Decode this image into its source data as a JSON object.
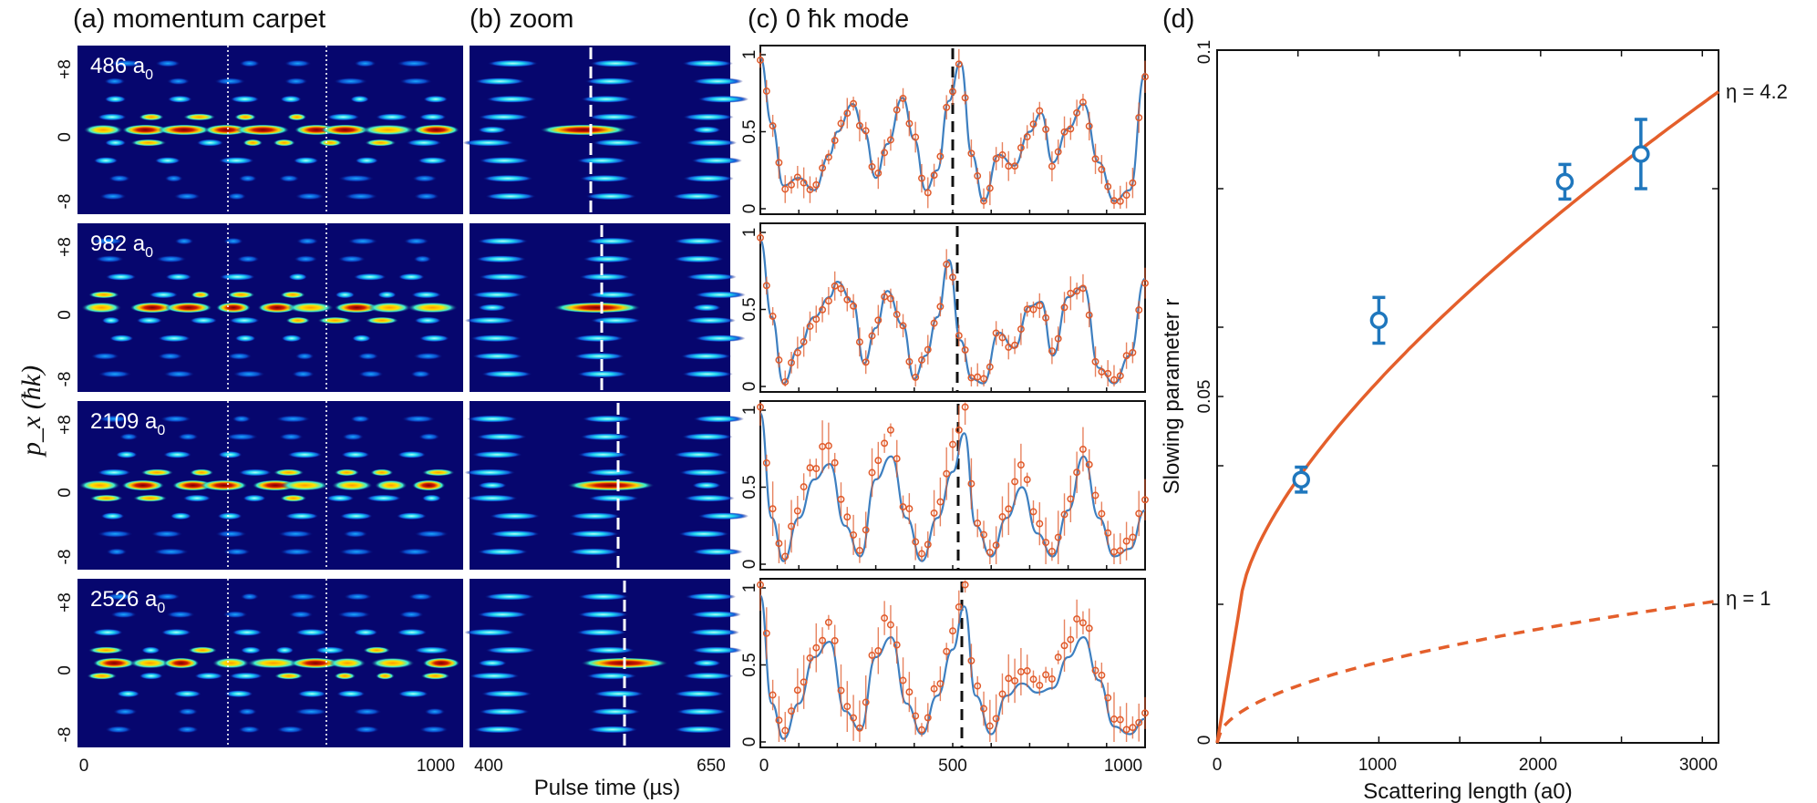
{
  "panels": {
    "a_title": "(a)  momentum carpet",
    "b_title": "(b)  zoom",
    "c_title": "(c)  0 ħk mode",
    "d_title": "(d)"
  },
  "y_axis_label": "p_x (ħk)",
  "carpet_y_ticks": [
    "+8",
    "0",
    "-8"
  ],
  "rows": [
    {
      "label": "486",
      "unit": "a",
      "sub": "0"
    },
    {
      "label": "982",
      "unit": "a",
      "sub": "0"
    },
    {
      "label": "2109",
      "unit": "a",
      "sub": "0"
    },
    {
      "label": "2526",
      "unit": "a",
      "sub": "0"
    }
  ],
  "carpet_x_ticks": [
    "0",
    "1000"
  ],
  "zoom_x_ticks": [
    "400",
    "650"
  ],
  "pulse_time_label": "Pulse time (µs)",
  "mode_y_ticks": [
    "1",
    "0.5",
    "0"
  ],
  "mode_x_ticks": [
    "0",
    "500",
    "1000"
  ],
  "colors": {
    "carpet_bg": "#06066e",
    "curve_blue": "#3d7fc0",
    "data_orange": "#e05a2a",
    "fit_orange": "#e45f2b",
    "marker_blue": "#1f77bd"
  },
  "chart_data": {
    "type": "line",
    "xlabel": "Scattering length (a0)",
    "ylabel": "Slowing parameter  r",
    "xlim": [
      0,
      3100
    ],
    "ylim": [
      0,
      0.1
    ],
    "x_ticks": [
      "0",
      "1000",
      "2000",
      "3000"
    ],
    "y_ticks": [
      "0",
      "0.05",
      "0.1"
    ],
    "series": [
      {
        "name": "η = 4.2",
        "style": "solid",
        "eta": 4.2
      },
      {
        "name": "η = 1",
        "style": "dashed",
        "eta": 1
      }
    ],
    "points": {
      "x": [
        520,
        1000,
        2150,
        2620
      ],
      "y": [
        0.038,
        0.061,
        0.081,
        0.085
      ],
      "err": [
        0.0018,
        0.0033,
        0.0025,
        0.005
      ]
    }
  }
}
